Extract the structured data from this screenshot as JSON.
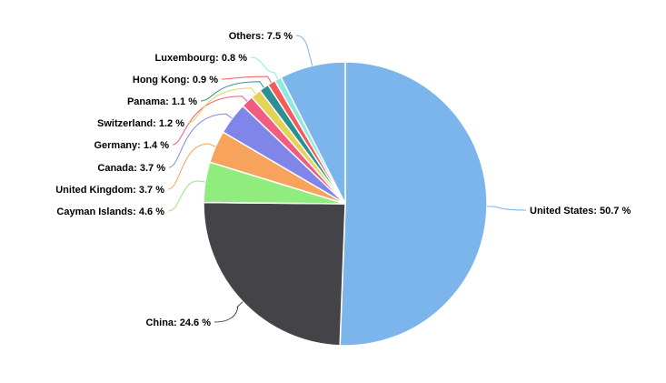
{
  "chart_data": {
    "type": "pie",
    "title": "",
    "slices": [
      {
        "name": "United States",
        "value": 50.7,
        "label": "United States: 50.7 %",
        "color": "#7cb5ec"
      },
      {
        "name": "China",
        "value": 24.6,
        "label": "China: 24.6 %",
        "color": "#434348"
      },
      {
        "name": "Cayman Islands",
        "value": 4.6,
        "label": "Cayman Islands: 4.6 %",
        "color": "#90ed7d"
      },
      {
        "name": "United Kingdom",
        "value": 3.7,
        "label": "United Kingdom: 3.7 %",
        "color": "#f7a35c"
      },
      {
        "name": "Canada",
        "value": 3.7,
        "label": "Canada: 3.7 %",
        "color": "#8085e9"
      },
      {
        "name": "Germany",
        "value": 1.4,
        "label": "Germany: 1.4 %",
        "color": "#f15c80"
      },
      {
        "name": "Switzerland",
        "value": 1.2,
        "label": "Switzerland: 1.2 %",
        "color": "#e4d354"
      },
      {
        "name": "Panama",
        "value": 1.1,
        "label": "Panama: 1.1 %",
        "color": "#2b908f"
      },
      {
        "name": "Hong Kong",
        "value": 0.9,
        "label": "Hong Kong: 0.9 %",
        "color": "#f45b5b"
      },
      {
        "name": "Luxembourg",
        "value": 0.8,
        "label": "Luxembourg: 0.8 %",
        "color": "#91e8e1"
      },
      {
        "name": "Others",
        "value": 7.5,
        "label": "Others: 7.5 %",
        "color": "#7cb5ec"
      }
    ],
    "legend": "none",
    "data_labels": "outside-with-connectors"
  }
}
